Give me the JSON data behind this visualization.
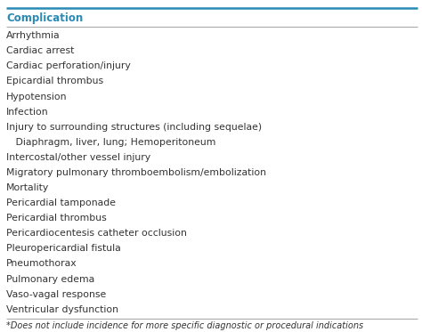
{
  "header": "Complication",
  "header_color": "#2a8ab5",
  "header_top_line_color": "#2a8ab5",
  "header_bottom_line_color": "#aaaaaa",
  "footer_line_color": "#aaaaaa",
  "rows": [
    {
      "text": "Arrhythmia",
      "indent": false
    },
    {
      "text": "Cardiac arrest",
      "indent": false
    },
    {
      "text": "Cardiac perforation/injury",
      "indent": false
    },
    {
      "text": "Epicardial thrombus",
      "indent": false
    },
    {
      "text": "Hypotension",
      "indent": false
    },
    {
      "text": "Infection",
      "indent": false
    },
    {
      "text": "Injury to surrounding structures (including sequelae)",
      "indent": false
    },
    {
      "text": "   Diaphragm, liver, lung; Hemoperitoneum",
      "indent": false
    },
    {
      "text": "Intercostal/other vessel injury",
      "indent": false
    },
    {
      "text": "Migratory pulmonary thromboembolism/embolization",
      "indent": false
    },
    {
      "text": "Mortality",
      "indent": false
    },
    {
      "text": "Pericardial tamponade",
      "indent": false
    },
    {
      "text": "Pericardial thrombus",
      "indent": false
    },
    {
      "text": "Pericardiocentesis catheter occlusion",
      "indent": false
    },
    {
      "text": "Pleuropericardial fistula",
      "indent": false
    },
    {
      "text": "Pneumothorax",
      "indent": false
    },
    {
      "text": "Pulmonary edema",
      "indent": false
    },
    {
      "text": "Vaso-vagal response",
      "indent": false
    },
    {
      "text": "Ventricular dysfunction",
      "indent": false
    }
  ],
  "footer_text": "*Does not include incidence for more specific diagnostic or procedural indications",
  "bg_color": "#ffffff",
  "text_color": "#333333",
  "font_size": 7.8,
  "header_font_size": 8.5,
  "footer_font_size": 7.0,
  "indent_amount": 0.025
}
